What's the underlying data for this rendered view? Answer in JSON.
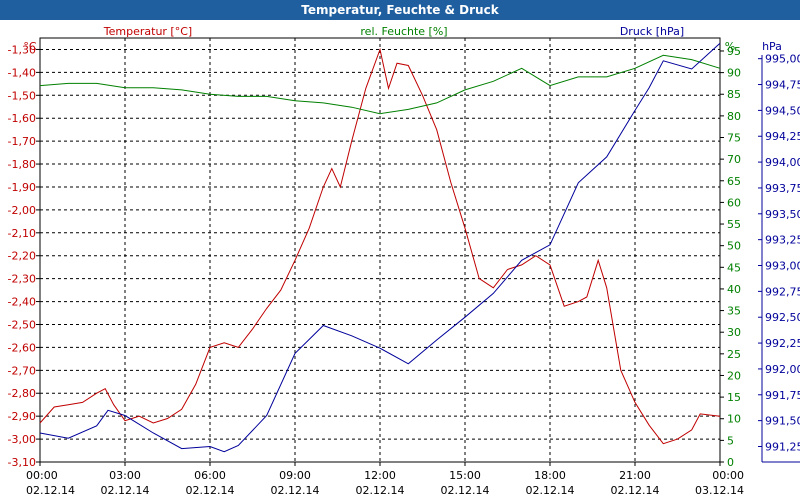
{
  "window": {
    "title": "Temperatur, Feuchte & Druck"
  },
  "colors": {
    "temperature": "#c00000",
    "humidity": "#008000",
    "pressure": "#00009a",
    "titlebar": "#1f5fa0"
  },
  "chart_data": {
    "type": "line",
    "title": "Temperatur, Feuchte & Druck",
    "grid": true,
    "x_ticks": [
      {
        "time": "00:00",
        "date": "02.12.14"
      },
      {
        "time": "03:00",
        "date": "02.12.14"
      },
      {
        "time": "06:00",
        "date": "02.12.14"
      },
      {
        "time": "09:00",
        "date": "02.12.14"
      },
      {
        "time": "12:00",
        "date": "02.12.14"
      },
      {
        "time": "15:00",
        "date": "02.12.14"
      },
      {
        "time": "18:00",
        "date": "02.12.14"
      },
      {
        "time": "21:00",
        "date": "02.12.14"
      },
      {
        "time": "00:00",
        "date": "03.12.14"
      }
    ],
    "x_hours_range": [
      0,
      24
    ],
    "axes": {
      "temperature": {
        "label": "Temperatur [°C]",
        "unit": "°C",
        "range": [
          -3.1,
          -1.25
        ],
        "ticks": [
          "-1,30",
          "-1,40",
          "-1,50",
          "-1,60",
          "-1,70",
          "-1,80",
          "-1,90",
          "-2,00",
          "-2,10",
          "-2,20",
          "-2,30",
          "-2,40",
          "-2,50",
          "-2,60",
          "-2,70",
          "-2,80",
          "-2,90",
          "-3,00",
          "-3,10"
        ]
      },
      "humidity": {
        "label": "rel. Feuchte [%]",
        "unit": "%",
        "range": [
          0,
          98
        ],
        "ticks": [
          "95",
          "90",
          "85",
          "80",
          "75",
          "70",
          "65",
          "60",
          "55",
          "50",
          "45",
          "40",
          "35",
          "30",
          "25",
          "20",
          "15",
          "10",
          "5",
          "0"
        ]
      },
      "pressure": {
        "label": "Druck [hPa]",
        "unit": "hPa",
        "range": [
          991.1,
          995.2
        ],
        "ticks": [
          "995,00",
          "994,75",
          "994,50",
          "994,25",
          "994,00",
          "993,75",
          "993,50",
          "993,25",
          "993,00",
          "992,75",
          "992,50",
          "992,25",
          "992,00",
          "991,75",
          "991,50",
          "991,25"
        ]
      }
    },
    "series": [
      {
        "name": "Temperatur [°C]",
        "axis": "temperature",
        "points": [
          [
            0,
            -2.93
          ],
          [
            0.5,
            -2.86
          ],
          [
            1,
            -2.85
          ],
          [
            1.5,
            -2.84
          ],
          [
            2,
            -2.8
          ],
          [
            2.3,
            -2.78
          ],
          [
            2.6,
            -2.85
          ],
          [
            3,
            -2.92
          ],
          [
            3.5,
            -2.9
          ],
          [
            4,
            -2.93
          ],
          [
            4.5,
            -2.91
          ],
          [
            5,
            -2.87
          ],
          [
            5.5,
            -2.76
          ],
          [
            6,
            -2.6
          ],
          [
            6.5,
            -2.58
          ],
          [
            7,
            -2.6
          ],
          [
            7.5,
            -2.52
          ],
          [
            8,
            -2.43
          ],
          [
            8.5,
            -2.35
          ],
          [
            9,
            -2.22
          ],
          [
            9.5,
            -2.08
          ],
          [
            10,
            -1.9
          ],
          [
            10.3,
            -1.82
          ],
          [
            10.6,
            -1.9
          ],
          [
            11,
            -1.7
          ],
          [
            11.5,
            -1.47
          ],
          [
            12,
            -1.3
          ],
          [
            12.3,
            -1.47
          ],
          [
            12.6,
            -1.36
          ],
          [
            13,
            -1.37
          ],
          [
            13.5,
            -1.5
          ],
          [
            14,
            -1.65
          ],
          [
            14.5,
            -1.88
          ],
          [
            15,
            -2.08
          ],
          [
            15.5,
            -2.3
          ],
          [
            16,
            -2.34
          ],
          [
            16.5,
            -2.26
          ],
          [
            17,
            -2.24
          ],
          [
            17.5,
            -2.2
          ],
          [
            18,
            -2.24
          ],
          [
            18.5,
            -2.42
          ],
          [
            19,
            -2.4
          ],
          [
            19.3,
            -2.38
          ],
          [
            19.7,
            -2.22
          ],
          [
            20,
            -2.34
          ],
          [
            20.5,
            -2.7
          ],
          [
            21,
            -2.84
          ],
          [
            21.5,
            -2.94
          ],
          [
            22,
            -3.02
          ],
          [
            22.5,
            -3.0
          ],
          [
            23,
            -2.96
          ],
          [
            23.3,
            -2.89
          ],
          [
            24,
            -2.9
          ]
        ]
      },
      {
        "name": "rel. Feuchte [%]",
        "axis": "humidity",
        "points": [
          [
            0,
            87
          ],
          [
            1,
            87.5
          ],
          [
            2,
            87.5
          ],
          [
            3,
            86.5
          ],
          [
            4,
            86.5
          ],
          [
            5,
            86
          ],
          [
            6,
            85
          ],
          [
            7,
            84.5
          ],
          [
            8,
            84.5
          ],
          [
            9,
            83.5
          ],
          [
            10,
            83
          ],
          [
            11,
            82
          ],
          [
            12,
            80.5
          ],
          [
            13,
            81.5
          ],
          [
            14,
            83
          ],
          [
            15,
            86
          ],
          [
            16,
            88
          ],
          [
            17,
            91
          ],
          [
            18,
            87
          ],
          [
            19,
            89
          ],
          [
            20,
            89
          ],
          [
            21,
            91
          ],
          [
            22,
            94
          ],
          [
            23,
            93
          ],
          [
            24,
            91
          ]
        ]
      },
      {
        "name": "Druck [hPa]",
        "axis": "pressure",
        "points": [
          [
            0,
            991.38
          ],
          [
            1,
            991.33
          ],
          [
            2,
            991.45
          ],
          [
            2.4,
            991.6
          ],
          [
            3,
            991.55
          ],
          [
            4,
            991.38
          ],
          [
            5,
            991.23
          ],
          [
            6,
            991.25
          ],
          [
            6.5,
            991.2
          ],
          [
            7,
            991.26
          ],
          [
            8,
            991.55
          ],
          [
            9,
            992.15
          ],
          [
            10,
            992.42
          ],
          [
            11,
            992.32
          ],
          [
            12,
            992.2
          ],
          [
            13,
            992.05
          ],
          [
            14,
            992.28
          ],
          [
            15,
            992.5
          ],
          [
            16,
            992.73
          ],
          [
            17,
            993.05
          ],
          [
            18,
            993.2
          ],
          [
            19,
            993.8
          ],
          [
            20,
            994.05
          ],
          [
            21,
            994.5
          ],
          [
            21.5,
            994.72
          ],
          [
            22,
            994.98
          ],
          [
            23,
            994.9
          ],
          [
            24,
            995.15
          ]
        ]
      }
    ]
  }
}
